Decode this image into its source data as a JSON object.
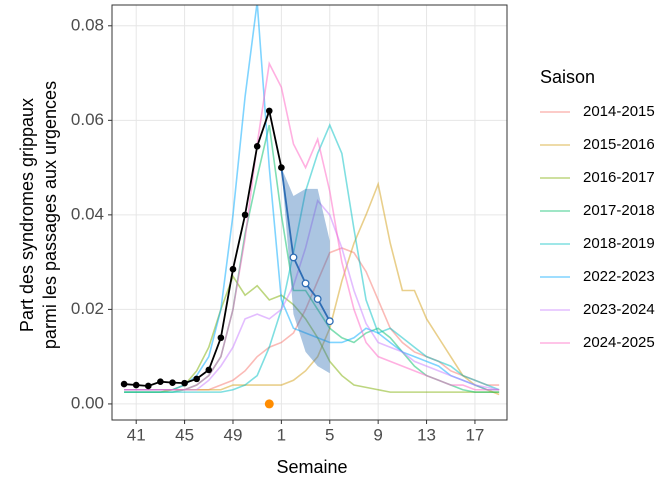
{
  "chart_data": {
    "type": "line",
    "x_label": "Semaine",
    "y_label": [
      "Part des syndromes grippaux",
      "parmi les passages aux urgences"
    ],
    "legend_title": "Saison",
    "grid": true,
    "xlim": [
      -1,
      31.65
    ],
    "ylim": [
      -0.0034,
      0.0844
    ],
    "xticks": [
      {
        "value": 1,
        "label": "41"
      },
      {
        "value": 5,
        "label": "45"
      },
      {
        "value": 9,
        "label": "49"
      },
      {
        "value": 13,
        "label": "1"
      },
      {
        "value": 17,
        "label": "5"
      },
      {
        "value": 21,
        "label": "9"
      },
      {
        "value": 25,
        "label": "13"
      },
      {
        "value": 29,
        "label": "17"
      }
    ],
    "yticks": [
      {
        "value": 0,
        "label": "0.00"
      },
      0.02,
      0.04,
      0.06,
      0.08
    ],
    "x": [
      0,
      1,
      2,
      3,
      4,
      5,
      6,
      7,
      8,
      9,
      10,
      11,
      12,
      13,
      14,
      15,
      16,
      17,
      18,
      19,
      20,
      21,
      22,
      23,
      24,
      25,
      26,
      27,
      28,
      29,
      30,
      31
    ],
    "series": [
      {
        "name": "2014-2015",
        "color": "#F8766D",
        "values": [
          0.003,
          0.003,
          0.003,
          0.003,
          0.003,
          0.003,
          0.003,
          0.003,
          0.004,
          0.005,
          0.007,
          0.01,
          0.012,
          0.013,
          0.015,
          0.02,
          0.026,
          0.032,
          0.033,
          0.032,
          0.028,
          0.022,
          0.016,
          0.013,
          0.011,
          0.01,
          0.009,
          0.007,
          0.006,
          0.005,
          0.004,
          0.004
        ]
      },
      {
        "name": "2015-2016",
        "color": "#D4A017",
        "values": [
          0.003,
          0.003,
          0.003,
          0.003,
          0.003,
          0.003,
          0.003,
          0.003,
          0.003,
          0.004,
          0.004,
          0.004,
          0.004,
          0.004,
          0.005,
          0.007,
          0.01,
          0.016,
          0.026,
          0.034,
          0.04,
          0.0465,
          0.034,
          0.024,
          0.024,
          0.018,
          0.014,
          0.01,
          0.006,
          0.004,
          0.003,
          0.002
        ]
      },
      {
        "name": "2016-2017",
        "color": "#7CAE00",
        "values": [
          0.0025,
          0.0025,
          0.0025,
          0.0025,
          0.003,
          0.004,
          0.007,
          0.012,
          0.02,
          0.027,
          0.023,
          0.025,
          0.022,
          0.023,
          0.021,
          0.018,
          0.014,
          0.009,
          0.006,
          0.004,
          0.0035,
          0.003,
          0.0025,
          0.0025,
          0.0025,
          0.0025,
          0.0025,
          0.0025,
          0.0025,
          0.0025,
          0.0025,
          0.0025
        ]
      },
      {
        "name": "2017-2018",
        "color": "#00BE67",
        "values": [
          0.0025,
          0.0025,
          0.0025,
          0.0025,
          0.0025,
          0.003,
          0.004,
          0.006,
          0.01,
          0.02,
          0.036,
          0.048,
          0.059,
          0.04,
          0.024,
          0.024,
          0.02,
          0.016,
          0.014,
          0.013,
          0.015,
          0.016,
          0.014,
          0.011,
          0.008,
          0.006,
          0.005,
          0.004,
          0.003,
          0.0025,
          0.0025,
          0.0025
        ]
      },
      {
        "name": "2018-2019",
        "color": "#00BFC4",
        "values": [
          0.0025,
          0.0025,
          0.0025,
          0.0025,
          0.0025,
          0.0025,
          0.0025,
          0.0025,
          0.0025,
          0.003,
          0.004,
          0.006,
          0.012,
          0.02,
          0.032,
          0.045,
          0.053,
          0.059,
          0.053,
          0.037,
          0.022,
          0.015,
          0.016,
          0.014,
          0.012,
          0.01,
          0.009,
          0.008,
          0.006,
          0.005,
          0.004,
          0.003
        ]
      },
      {
        "name": "2022-2023",
        "color": "#00A9FF",
        "values": [
          0.003,
          0.003,
          0.003,
          0.003,
          0.003,
          0.004,
          0.006,
          0.01,
          0.02,
          0.04,
          0.065,
          0.085,
          0.05,
          0.022,
          0.016,
          0.015,
          0.014,
          0.013,
          0.013,
          0.014,
          0.016,
          0.015,
          0.013,
          0.011,
          0.01,
          0.009,
          0.008,
          0.006,
          0.005,
          0.004,
          0.003,
          0.003
        ]
      },
      {
        "name": "2023-2024",
        "color": "#C77CFF",
        "values": [
          0.003,
          0.003,
          0.003,
          0.003,
          0.003,
          0.003,
          0.003,
          0.005,
          0.008,
          0.012,
          0.018,
          0.019,
          0.018,
          0.02,
          0.025,
          0.033,
          0.043,
          0.04,
          0.033,
          0.024,
          0.017,
          0.013,
          0.012,
          0.011,
          0.009,
          0.008,
          0.007,
          0.006,
          0.005,
          0.004,
          0.0035,
          0.003
        ]
      },
      {
        "name": "2024-2025",
        "color": "#FF61C3",
        "values": [
          0.003,
          0.003,
          0.003,
          0.003,
          0.003,
          0.003,
          0.004,
          0.006,
          0.01,
          0.02,
          0.035,
          0.055,
          0.072,
          0.067,
          0.055,
          0.05,
          0.056,
          0.045,
          0.03,
          0.02,
          0.013,
          0.01,
          0.009,
          0.008,
          0.007,
          0.006,
          0.005,
          0.004,
          0.004,
          0.003,
          0.003,
          0.003
        ]
      }
    ],
    "current": {
      "color": "#000000",
      "x": [
        0,
        1,
        2,
        3,
        4,
        5,
        6,
        7,
        8,
        9,
        10,
        11,
        12,
        13
      ],
      "values": [
        0.0042,
        0.004,
        0.0038,
        0.0047,
        0.0045,
        0.0044,
        0.0053,
        0.0072,
        0.014,
        0.0285,
        0.04,
        0.0545,
        0.062,
        0.05
      ]
    },
    "forecast": {
      "color": "#2E6DB4",
      "x": [
        13,
        14,
        15,
        16,
        17
      ],
      "values": [
        0.05,
        0.031,
        0.0255,
        0.0222,
        0.0175
      ],
      "lower": [
        0.05,
        0.019,
        0.011,
        0.008,
        0.0065
      ],
      "upper": [
        0.05,
        0.044,
        0.0455,
        0.0455,
        0.0345
      ]
    },
    "marker": {
      "color": "#FF8C00",
      "x": 12,
      "y": 0
    }
  }
}
